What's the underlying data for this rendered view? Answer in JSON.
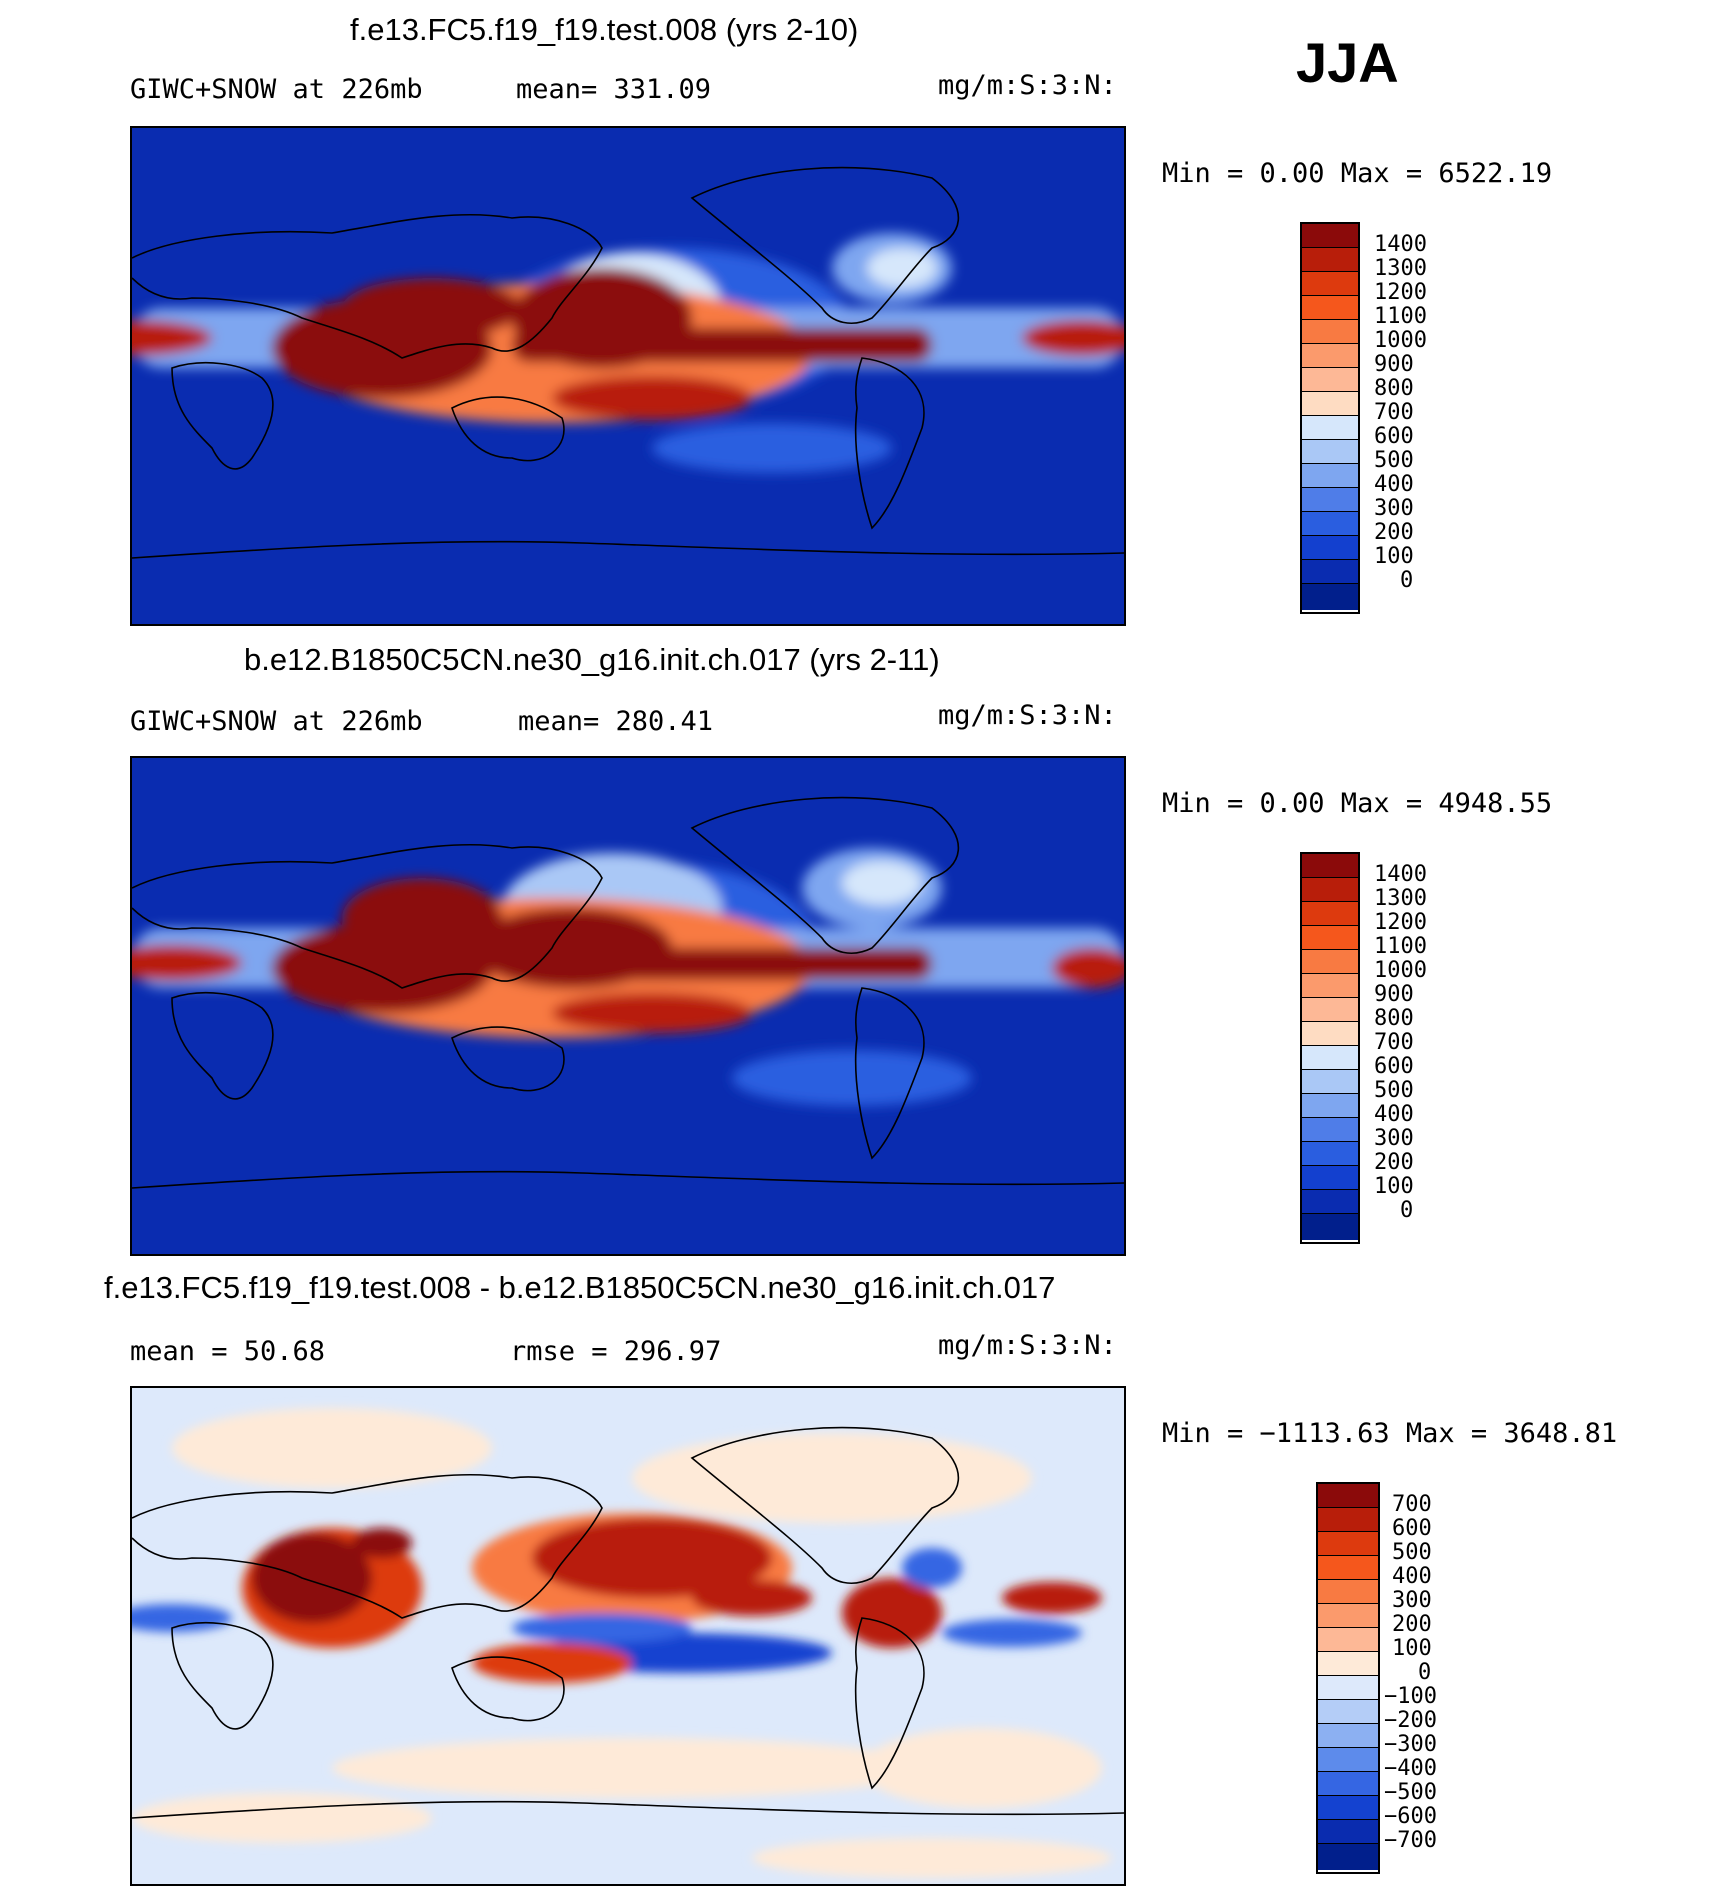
{
  "season": "JJA",
  "units": "mg/m:S:3:N:",
  "panels": [
    {
      "title": "f.e13.FC5.f19_f19.test.008 (yrs 2-10)",
      "left_label": "GIWC+SNOW at 226mb",
      "stat_label": "mean= 331.09",
      "minmax": "Min =    0.00 Max = 6522.19",
      "levels": [
        "1400",
        "1300",
        "1200",
        "1100",
        "1000",
        "900",
        "800",
        "700",
        "600",
        "500",
        "400",
        "300",
        "200",
        "100",
        "0"
      ],
      "colors": [
        "#8b0a0a",
        "#b81e0a",
        "#dd3a0e",
        "#f5571c",
        "#f87a42",
        "#fb9a6c",
        "#fdb896",
        "#fedcc2",
        "#ffffff",
        "#d6e7fb",
        "#aac8f6",
        "#7ea6f0",
        "#4f7de8",
        "#2a5ee0",
        "#1340cf",
        "#0a2cb0",
        "#011f8c"
      ],
      "stat_text": "mean= 331.09"
    },
    {
      "title": "b.e12.B1850C5CN.ne30_g16.init.ch.017 (yrs 2-11)",
      "left_label": "GIWC+SNOW at 226mb",
      "stat_label": "mean= 280.41",
      "minmax": "Min =    0.00 Max = 4948.55",
      "levels": [
        "1400",
        "1300",
        "1200",
        "1100",
        "1000",
        "900",
        "800",
        "700",
        "600",
        "500",
        "400",
        "300",
        "200",
        "100",
        "0"
      ]
    },
    {
      "title": "f.e13.FC5.f19_f19.test.008 - b.e12.B1850C5CN.ne30_g16.init.ch.017",
      "left_label": "mean =   50.68",
      "stat_label": "rmse =  296.97",
      "minmax": "Min = −1113.63 Max = 3648.81",
      "levels": [
        "700",
        "600",
        "500",
        "400",
        "300",
        "200",
        "100",
        "0",
        "−100",
        "−200",
        "−300",
        "−400",
        "−500",
        "−600",
        "−700"
      ]
    }
  ],
  "colors": {
    "seq": [
      "#8b0a0a",
      "#b81e0a",
      "#dd3a0e",
      "#f5571c",
      "#f87a42",
      "#fb9a6c",
      "#fdb896",
      "#fedcc2",
      "#d6e7fb",
      "#aac8f6",
      "#7ea6f0",
      "#4f7de8",
      "#2a5ee0",
      "#1340cf",
      "#0a2cb0"
    ],
    "seq_bottom": "#011f8c",
    "div": [
      "#8b0a0a",
      "#b81e0a",
      "#dd3a0e",
      "#f5571c",
      "#f87a42",
      "#fb9a6c",
      "#fdb896",
      "#feead8",
      "#dde9fb",
      "#b4cdf7",
      "#8cb0f2",
      "#5d8beb",
      "#3566e3",
      "#1442d0",
      "#0a2caf"
    ],
    "div_bottom": "#011f8c"
  }
}
